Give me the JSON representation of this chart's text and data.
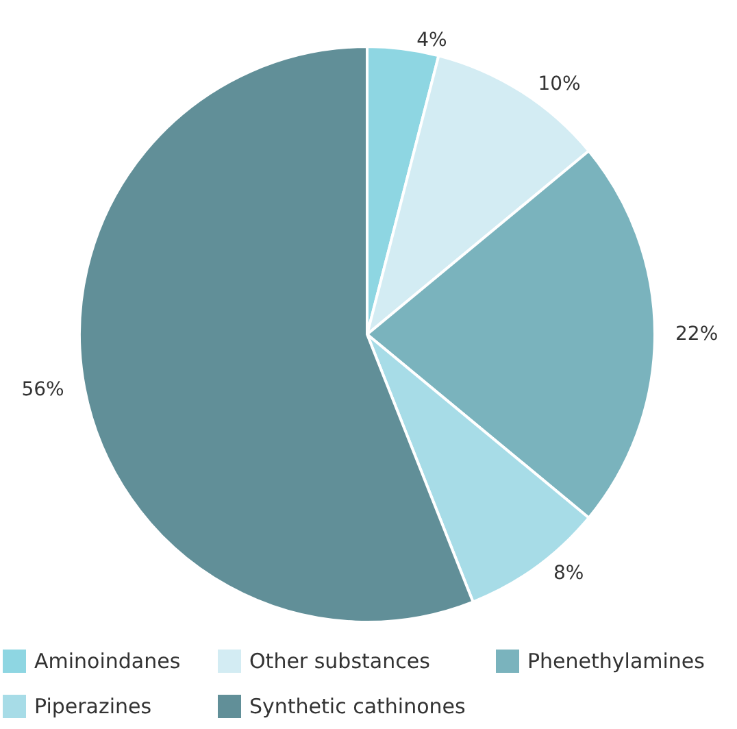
{
  "chart_data": {
    "type": "pie",
    "categories": [
      "Aminoindanes",
      "Other substances",
      "Phenethylamines",
      "Piperazines",
      "Synthetic cathinones"
    ],
    "values": [
      4,
      10,
      22,
      8,
      56
    ],
    "colors": [
      "#8ed6e2",
      "#d3ecf3",
      "#7ab3bd",
      "#a7dce7",
      "#618f98"
    ],
    "value_labels": [
      "4%",
      "10%",
      "22%",
      "8%",
      "56%"
    ],
    "legend": "bottom"
  }
}
